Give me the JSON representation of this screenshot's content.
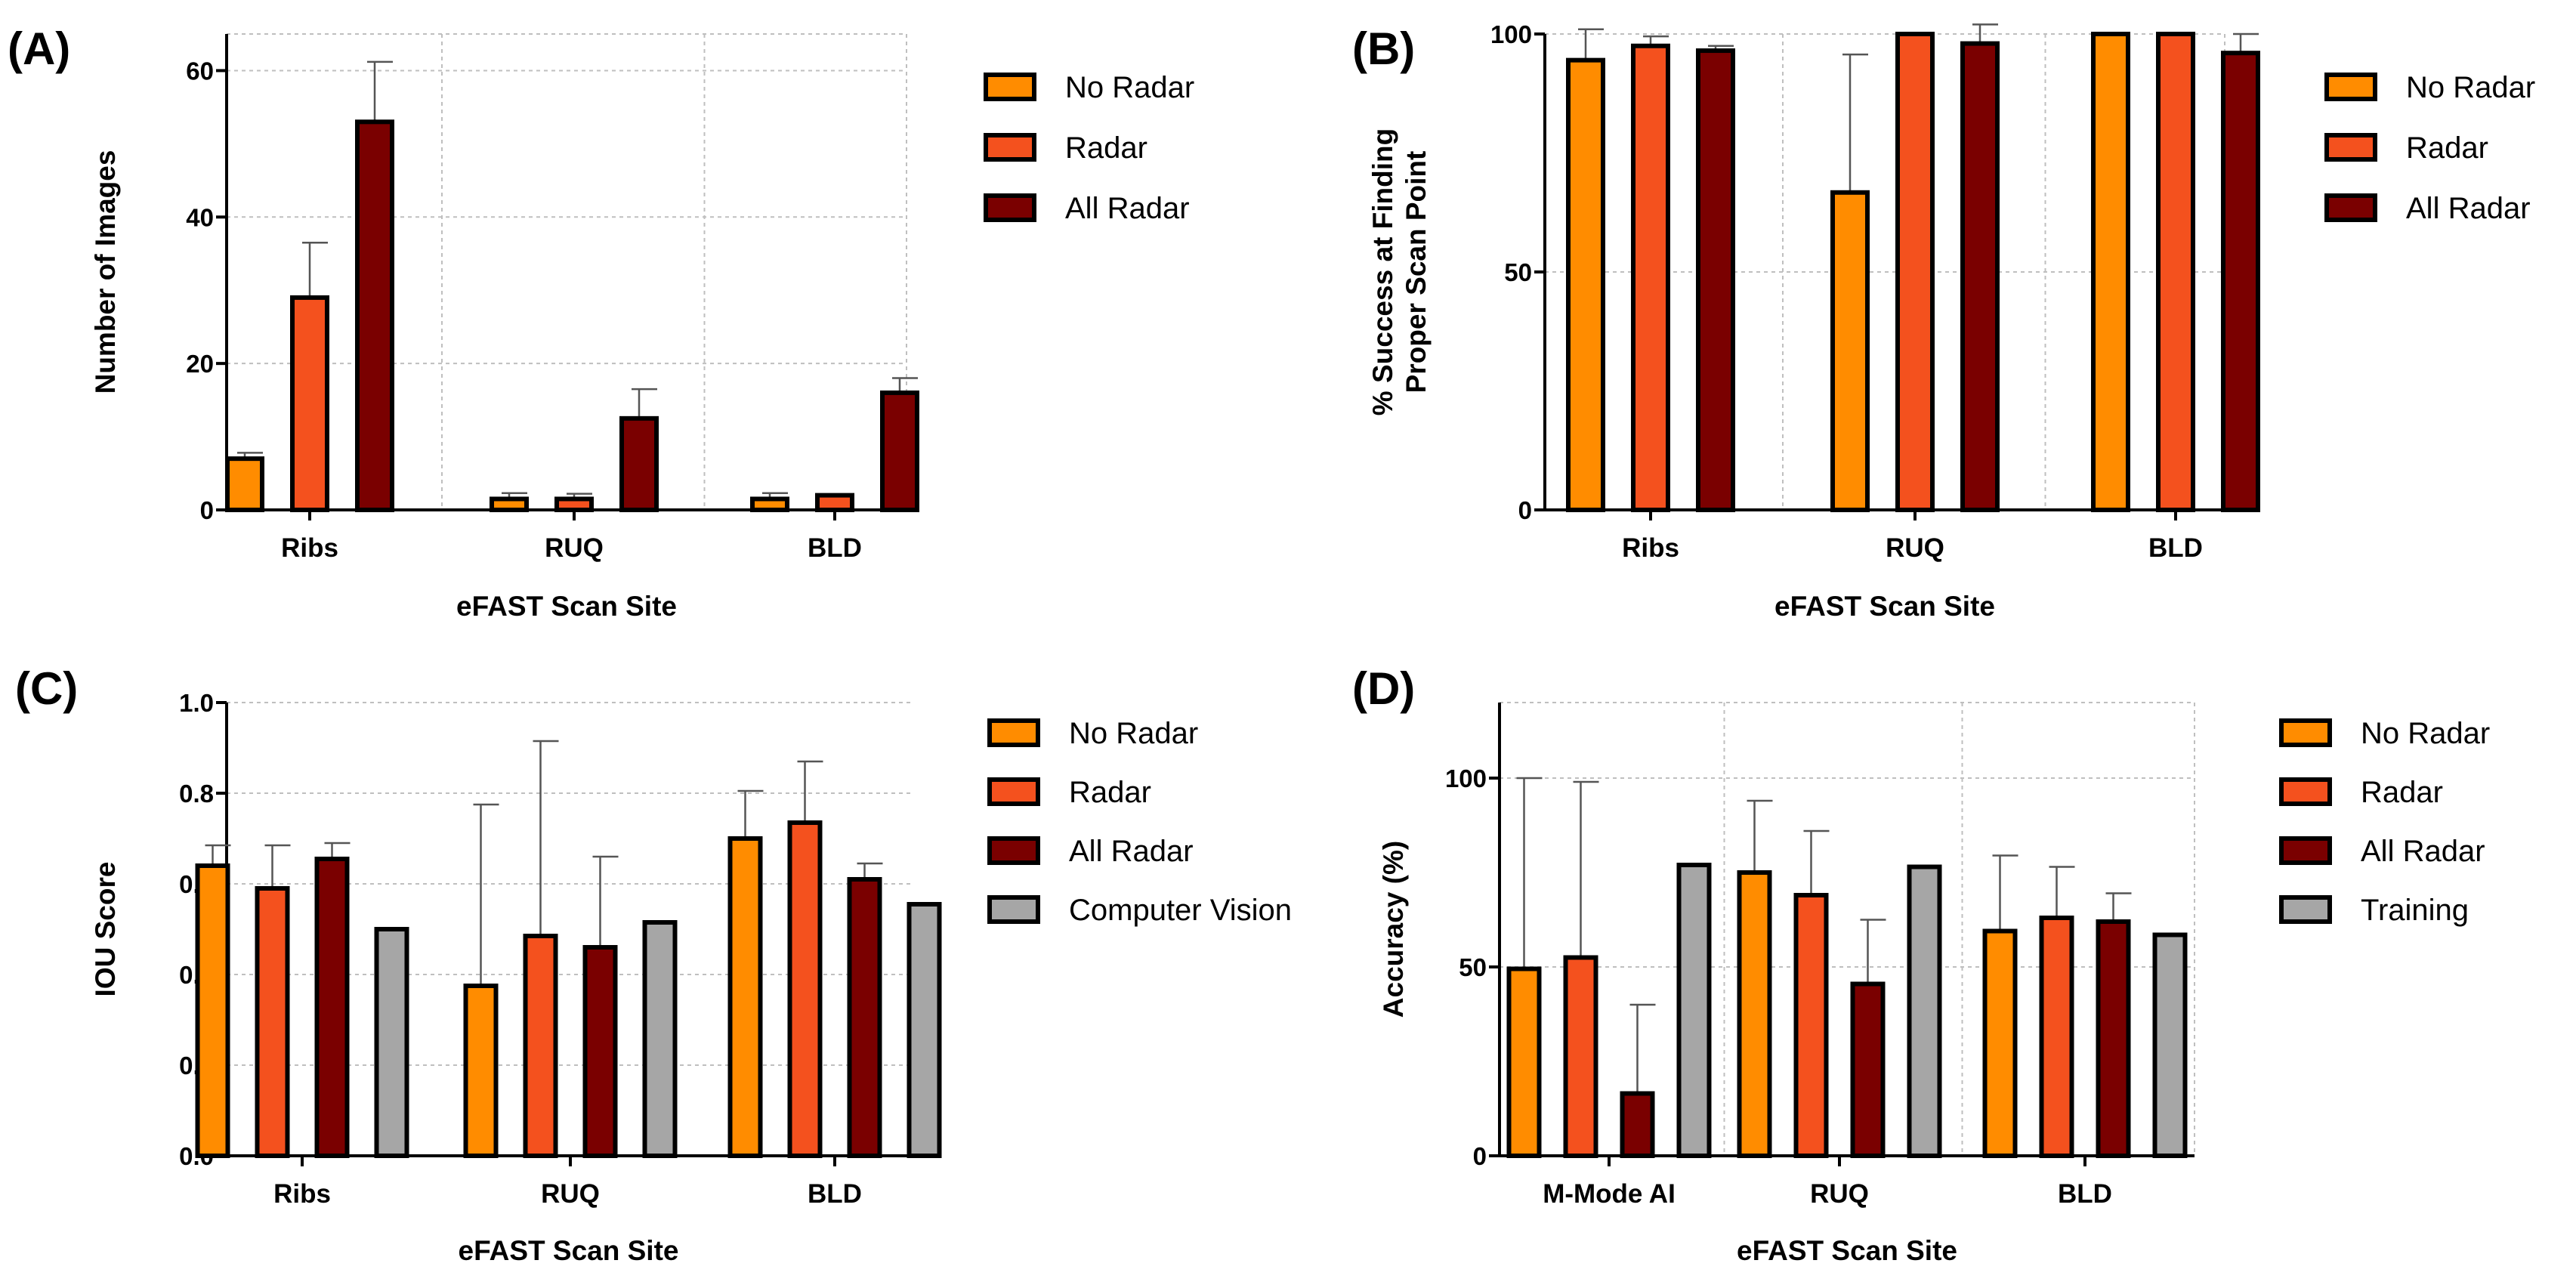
{
  "colors": {
    "no_radar": "#ff8c00",
    "radar": "#f4511e",
    "all_radar": "#7a0000",
    "gray": "#a6a6a6"
  },
  "chart_data": [
    {
      "panel": "(A)",
      "type": "bar",
      "categories": [
        "Ribs",
        "RUQ",
        "BLD"
      ],
      "ylabel": "Number of Images",
      "xlabel": "eFAST Scan Site",
      "ylim": [
        0,
        65
      ],
      "yticks": [
        0,
        20,
        40,
        60
      ],
      "grid": true,
      "legend_placement": "right",
      "series": [
        {
          "name": "No Radar",
          "color_key": "no_radar",
          "values": [
            7,
            1.5,
            1.5
          ],
          "errors": [
            0.8,
            0.8,
            0.8
          ]
        },
        {
          "name": "Radar",
          "color_key": "radar",
          "values": [
            29,
            1.5,
            2
          ],
          "errors": [
            7.5,
            0.7,
            0
          ]
        },
        {
          "name": "All Radar",
          "color_key": "all_radar",
          "values": [
            53,
            12.5,
            16
          ],
          "errors": [
            8.2,
            4,
            2
          ]
        }
      ]
    },
    {
      "panel": "(B)",
      "type": "bar",
      "categories": [
        "Ribs",
        "RUQ",
        "BLD"
      ],
      "ylabel": [
        "% Success at Finding",
        "Proper Scan Point"
      ],
      "xlabel": "eFAST Scan Site",
      "ylim": [
        0,
        100
      ],
      "yticks": [
        0,
        50,
        100
      ],
      "grid": true,
      "legend_placement": "right",
      "series": [
        {
          "name": "No Radar",
          "color_key": "no_radar",
          "values": [
            94.5,
            66.7,
            100
          ],
          "errors": [
            6.5,
            29,
            0
          ]
        },
        {
          "name": "Radar",
          "color_key": "radar",
          "values": [
            97.5,
            100,
            100
          ],
          "errors": [
            2,
            0,
            0
          ]
        },
        {
          "name": "All Radar",
          "color_key": "all_radar",
          "values": [
            96.5,
            98,
            96
          ],
          "errors": [
            1,
            4,
            4
          ]
        }
      ]
    },
    {
      "panel": "(C)",
      "type": "bar",
      "categories": [
        "Ribs",
        "RUQ",
        "BLD"
      ],
      "ylabel": "IOU Score",
      "xlabel": "eFAST Scan Site",
      "ylim": [
        0,
        1.0
      ],
      "yticks": [
        "0.0",
        "0.2",
        "0.4",
        "0.6",
        "0.8",
        "1.0"
      ],
      "grid": true,
      "legend_placement": "right",
      "series": [
        {
          "name": "No Radar",
          "color_key": "no_radar",
          "values": [
            0.64,
            0.375,
            0.7
          ],
          "errors": [
            0.045,
            0.4,
            0.105
          ]
        },
        {
          "name": "Radar",
          "color_key": "radar",
          "values": [
            0.59,
            0.485,
            0.735
          ],
          "errors": [
            0.095,
            0.43,
            0.135
          ]
        },
        {
          "name": "All Radar",
          "color_key": "all_radar",
          "values": [
            0.655,
            0.46,
            0.61
          ],
          "errors": [
            0.035,
            0.2,
            0.035
          ]
        },
        {
          "name": "Computer Vision",
          "color_key": "gray",
          "values": [
            0.5,
            0.515,
            0.555
          ],
          "errors": [
            0,
            0,
            0
          ]
        }
      ]
    },
    {
      "panel": "(D)",
      "type": "bar",
      "categories": [
        "M-Mode AI",
        "RUQ",
        "BLD"
      ],
      "ylabel": "Accuracy  (%)",
      "xlabel": "eFAST Scan Site",
      "ylim": [
        0,
        120
      ],
      "yticks": [
        0,
        50,
        100
      ],
      "grid": true,
      "legend_placement": "right",
      "series": [
        {
          "name": "No Radar",
          "color_key": "no_radar",
          "values": [
            49.5,
            75,
            59.5
          ],
          "errors": [
            50.5,
            19,
            20
          ]
        },
        {
          "name": "Radar",
          "color_key": "radar",
          "values": [
            52.5,
            69,
            63
          ],
          "errors": [
            46.5,
            17,
            13.5
          ]
        },
        {
          "name": "All Radar",
          "color_key": "all_radar",
          "values": [
            16.5,
            45.5,
            62
          ],
          "errors": [
            23.5,
            17,
            7.5
          ]
        },
        {
          "name": "Training",
          "color_key": "gray",
          "values": [
            77,
            76.5,
            58.5
          ],
          "errors": [
            0,
            0,
            0
          ]
        }
      ]
    }
  ]
}
